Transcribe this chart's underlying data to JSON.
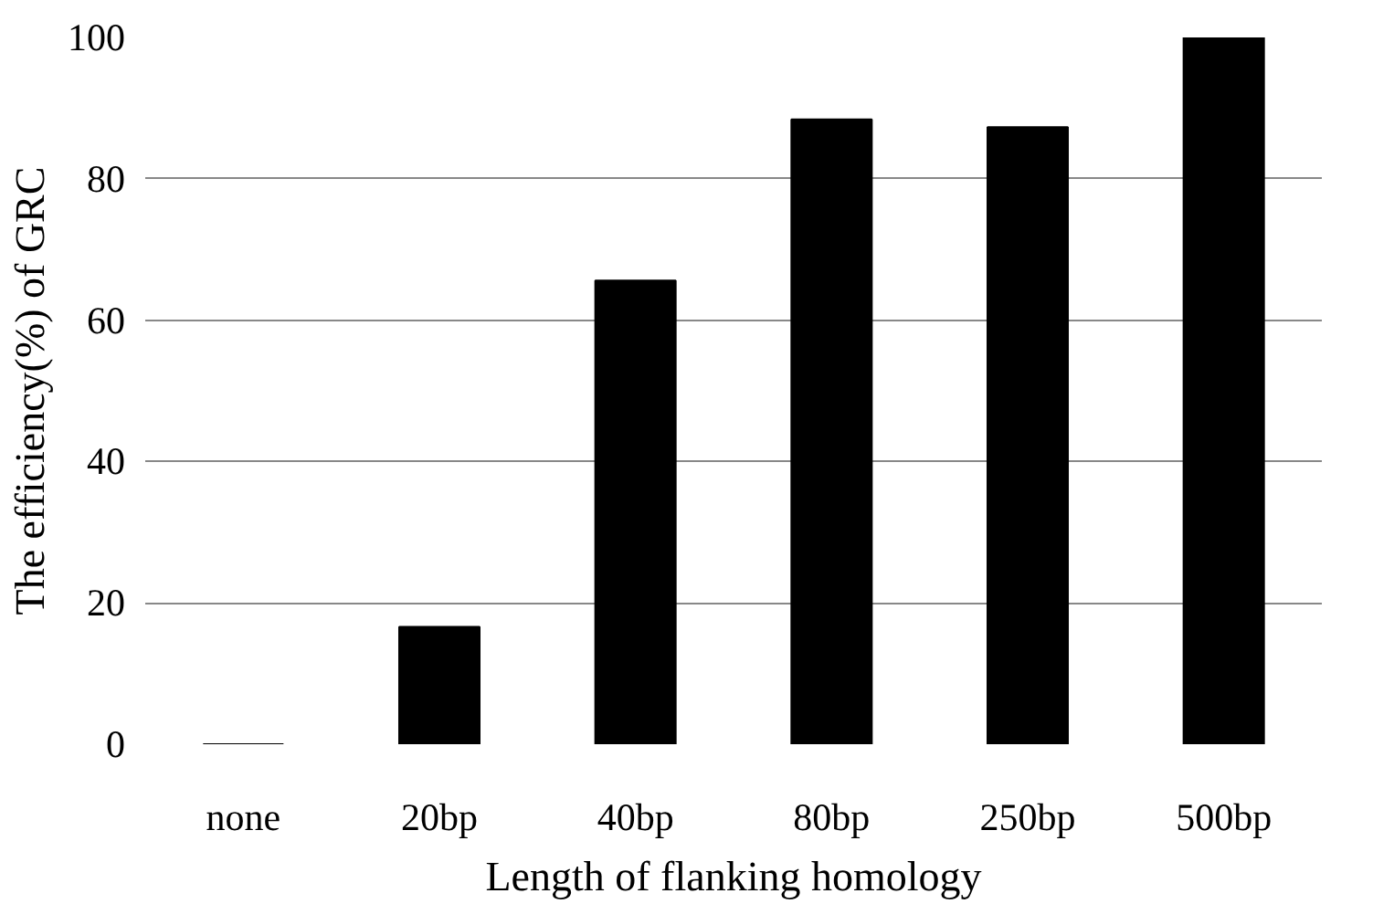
{
  "chart_data": {
    "type": "bar",
    "xlabel": "Length of flanking homology",
    "ylabel": "The efficiency(%) of GRC",
    "categories": [
      "none",
      "20bp",
      "40bp",
      "80bp",
      "250bp",
      "500bp"
    ],
    "values": [
      0,
      16.6,
      65.6,
      88.4,
      87.3,
      100
    ],
    "color": "#000000",
    "ylim": [
      0,
      100
    ],
    "yticks": [
      0,
      20,
      40,
      60,
      80,
      100
    ],
    "grid": "y"
  }
}
